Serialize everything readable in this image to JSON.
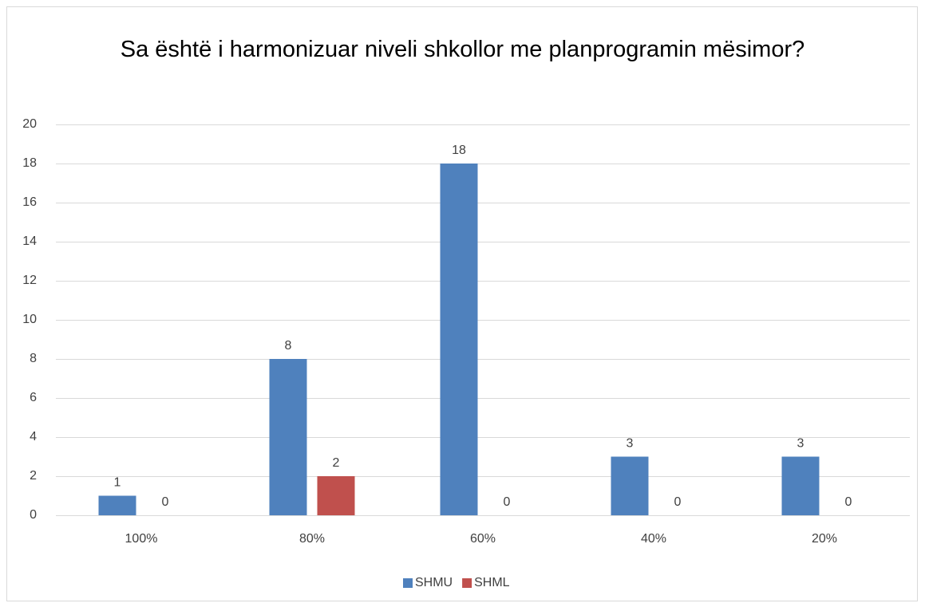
{
  "chart_data": {
    "type": "bar",
    "title": "Sa është i harmonizuar niveli shkollor me planprogramin mësimor?",
    "categories": [
      "100%",
      "80%",
      "60%",
      "40%",
      "20%"
    ],
    "series": [
      {
        "name": "SHMU",
        "color": "#4f81bd",
        "values": [
          1,
          8,
          18,
          3,
          3
        ]
      },
      {
        "name": "SHML",
        "color": "#c0504d",
        "values": [
          0,
          2,
          0,
          0,
          0
        ]
      }
    ],
    "ylim": [
      0,
      20
    ],
    "yticks": [
      0,
      2,
      4,
      6,
      8,
      10,
      12,
      14,
      16,
      18,
      20
    ],
    "grid": true,
    "legend": "bottom"
  }
}
